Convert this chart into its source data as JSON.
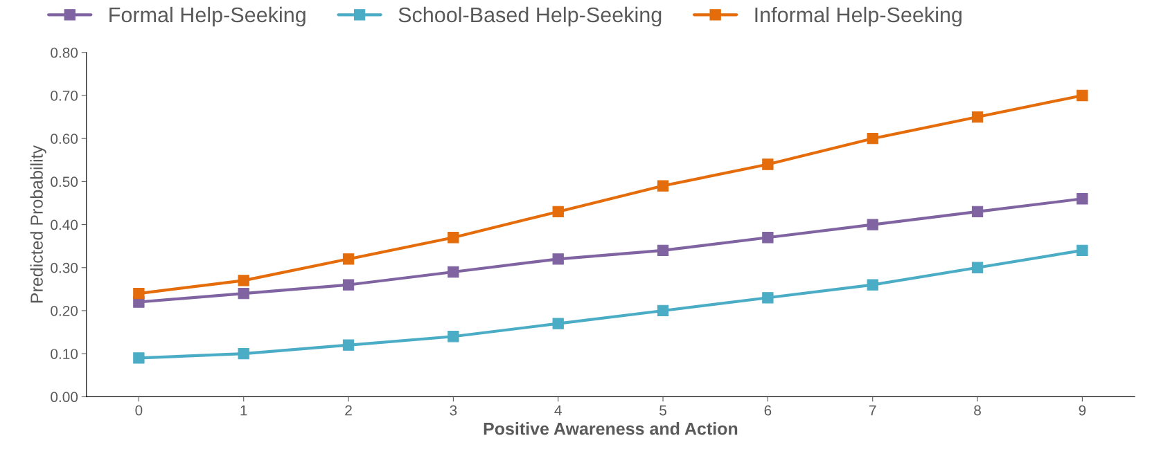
{
  "chart_data": {
    "type": "line",
    "xlabel": "Positive Awareness and Action",
    "ylabel": "Predicted Probability",
    "categories": [
      "0",
      "1",
      "2",
      "3",
      "4",
      "5",
      "6",
      "7",
      "8",
      "9"
    ],
    "series": [
      {
        "name": "Formal Help-Seeking",
        "color": "#8064a2",
        "values": [
          0.22,
          0.24,
          0.26,
          0.29,
          0.32,
          0.34,
          0.37,
          0.4,
          0.43,
          0.46
        ]
      },
      {
        "name": "School-Based Help-Seeking",
        "color": "#4bacc6",
        "values": [
          0.09,
          0.1,
          0.12,
          0.14,
          0.17,
          0.2,
          0.23,
          0.26,
          0.3,
          0.34
        ]
      },
      {
        "name": "Informal Help-Seeking",
        "color": "#e46c0a",
        "values": [
          0.24,
          0.27,
          0.32,
          0.37,
          0.43,
          0.49,
          0.54,
          0.6,
          0.65,
          0.7
        ]
      }
    ],
    "ylim": [
      0,
      0.8
    ],
    "yticks": [
      {
        "value": 0,
        "label": "0.00"
      },
      {
        "value": 0.1,
        "label": "0.10"
      },
      {
        "value": 0.2,
        "label": "0.20"
      },
      {
        "value": 0.3,
        "label": "0.30"
      },
      {
        "value": 0.4,
        "label": "0.40"
      },
      {
        "value": 0.5,
        "label": "0.50"
      },
      {
        "value": 0.6,
        "label": "0.60"
      },
      {
        "value": 0.7,
        "label": "0.70"
      },
      {
        "value": 0.8,
        "label": "0.80"
      }
    ],
    "grid": false,
    "legend": "top",
    "marker": "square",
    "line_style": "solid"
  }
}
